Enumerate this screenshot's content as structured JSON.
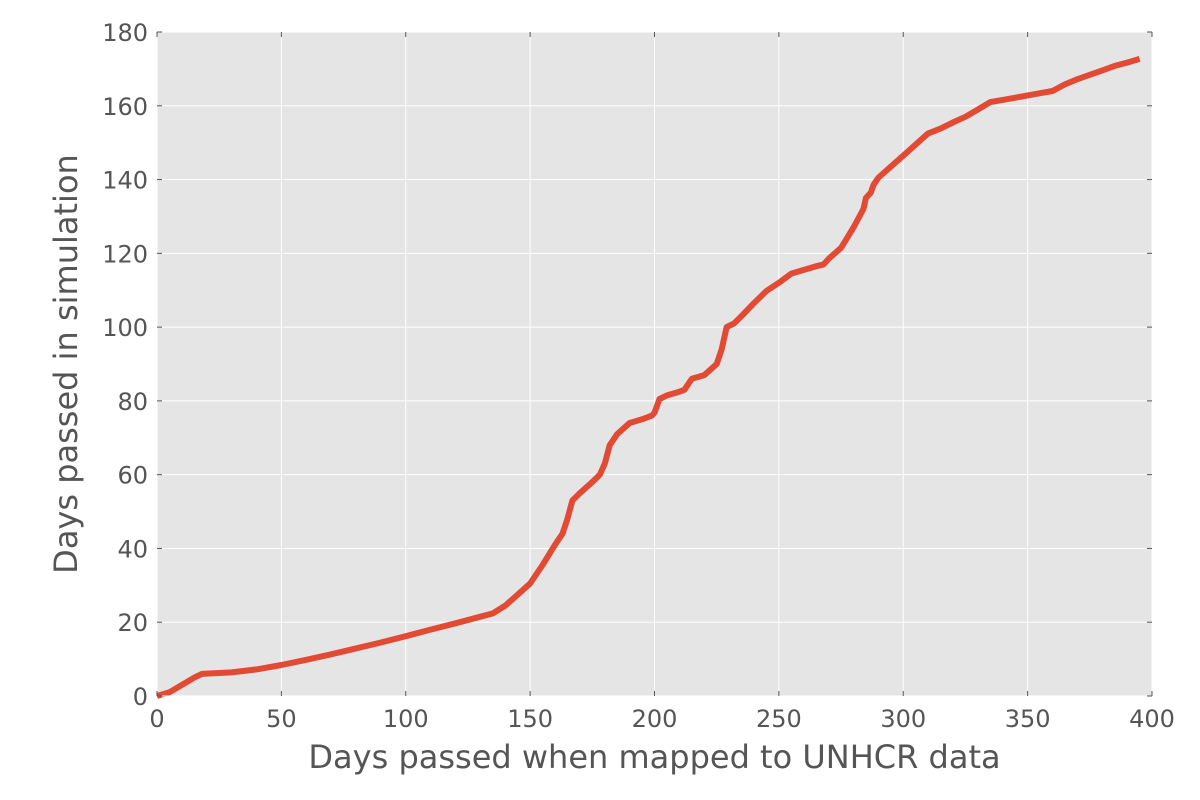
{
  "chart_data": {
    "type": "line",
    "title": "",
    "xlabel": "Days passed when mapped to UNHCR data",
    "ylabel": "Days passed in simulation",
    "xlim": [
      0,
      400
    ],
    "ylim": [
      0,
      180
    ],
    "xticks": [
      0,
      50,
      100,
      150,
      200,
      250,
      300,
      350,
      400
    ],
    "yticks": [
      0,
      20,
      40,
      60,
      80,
      100,
      120,
      140,
      160,
      180
    ],
    "grid": true,
    "legend": "none",
    "colors": {
      "background": "#e5e5e5",
      "grid": "#ffffff",
      "line": "#e24a33",
      "text": "#555555"
    },
    "series": [
      {
        "x": [
          0,
          5,
          10,
          15,
          18,
          30,
          40,
          50,
          60,
          70,
          80,
          90,
          100,
          110,
          120,
          130,
          135,
          140,
          145,
          150,
          155,
          160,
          163,
          165,
          167,
          170,
          175,
          178,
          180,
          182,
          185,
          190,
          195,
          199,
          200,
          202,
          205,
          210,
          212,
          215,
          220,
          225,
          227,
          229,
          232,
          235,
          240,
          245,
          250,
          255,
          260,
          265,
          268,
          270,
          275,
          280,
          284,
          285,
          287,
          288,
          290,
          295,
          300,
          305,
          310,
          315,
          320,
          325,
          330,
          335,
          340,
          345,
          350,
          355,
          360,
          365,
          370,
          375,
          380,
          385,
          390,
          395
        ],
        "y": [
          0,
          1,
          3,
          5,
          6,
          6.4,
          7.2,
          8.4,
          9.8,
          11.3,
          12.9,
          14.5,
          16.2,
          18,
          19.7,
          21.5,
          22.4,
          24.5,
          27.5,
          30.5,
          35.5,
          41,
          44,
          48,
          53,
          55,
          58,
          60,
          63,
          68,
          71,
          74,
          75,
          76,
          76.8,
          80.5,
          81.5,
          82.5,
          83,
          86,
          87,
          90,
          94,
          100,
          101,
          103,
          106.5,
          109.8,
          112,
          114.5,
          115.5,
          116.5,
          117,
          118.5,
          121.5,
          127,
          132,
          135,
          136.5,
          138.5,
          140.5,
          143.5,
          146.5,
          149.5,
          152.5,
          153.8,
          155.5,
          157,
          159,
          161,
          161.6,
          162.2,
          162.8,
          163.4,
          164,
          165.8,
          167.2,
          168.4,
          169.6,
          170.8,
          171.7,
          172.7
        ]
      }
    ]
  }
}
